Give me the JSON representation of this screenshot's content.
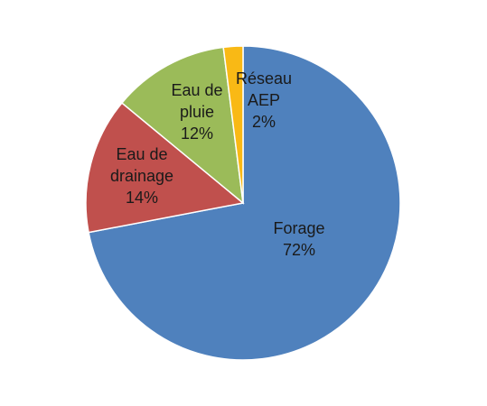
{
  "chart_data": {
    "type": "pie",
    "categories": [
      "Forage",
      "Eau de drainage",
      "Eau de pluie",
      "Réseau AEP"
    ],
    "values": [
      72,
      14,
      12,
      2
    ],
    "value_labels": [
      "72%",
      "14%",
      "12%",
      "2%"
    ],
    "colors": [
      "#4f81bd",
      "#c0504d",
      "#9bbb59",
      "#f9b915"
    ]
  }
}
